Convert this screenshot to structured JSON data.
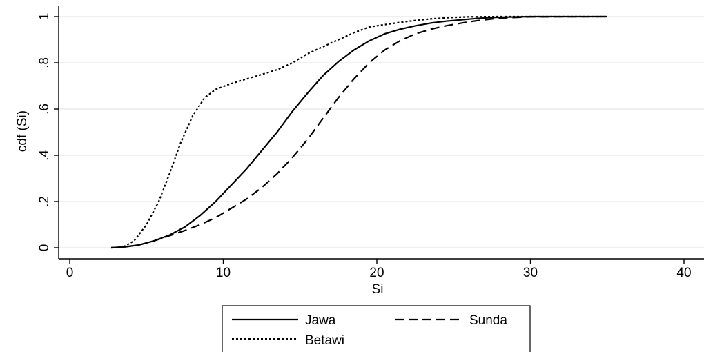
{
  "chart_data": {
    "type": "line",
    "title": "",
    "xlabel": "Si",
    "ylabel": "cdf (Si)",
    "xlim": [
      0,
      40
    ],
    "ylim": [
      0,
      1
    ],
    "grid": true,
    "legend_position": "bottom",
    "x_ticks": [
      {
        "value": 0,
        "label": "0"
      },
      {
        "value": 10,
        "label": "10"
      },
      {
        "value": 20,
        "label": "20"
      },
      {
        "value": 30,
        "label": "30"
      },
      {
        "value": 40,
        "label": "40"
      }
    ],
    "y_ticks": [
      {
        "value": 0,
        "label": "0"
      },
      {
        "value": 0.2,
        "label": ".2"
      },
      {
        "value": 0.4,
        "label": ".4"
      },
      {
        "value": 0.6,
        "label": ".6"
      },
      {
        "value": 0.8,
        "label": ".8"
      },
      {
        "value": 1,
        "label": "1"
      }
    ],
    "series": [
      {
        "name": "Jawa",
        "style": "solid",
        "color": "#000000",
        "points": [
          [
            2.7,
            0
          ],
          [
            3.5,
            0.003
          ],
          [
            4.5,
            0.012
          ],
          [
            5.5,
            0.03
          ],
          [
            6.5,
            0.055
          ],
          [
            7.5,
            0.09
          ],
          [
            8.5,
            0.14
          ],
          [
            9.5,
            0.2
          ],
          [
            10.5,
            0.27
          ],
          [
            11.5,
            0.34
          ],
          [
            12.5,
            0.42
          ],
          [
            13.5,
            0.5
          ],
          [
            14.5,
            0.59
          ],
          [
            15.5,
            0.67
          ],
          [
            16.5,
            0.745
          ],
          [
            17.5,
            0.805
          ],
          [
            18.5,
            0.855
          ],
          [
            19.5,
            0.895
          ],
          [
            20.5,
            0.925
          ],
          [
            21.5,
            0.945
          ],
          [
            22.5,
            0.96
          ],
          [
            23.5,
            0.972
          ],
          [
            24.5,
            0.98
          ],
          [
            25.5,
            0.986
          ],
          [
            26.5,
            0.992
          ],
          [
            27.5,
            0.996
          ],
          [
            28.5,
            0.998
          ],
          [
            30,
            1
          ],
          [
            35,
            1
          ]
        ]
      },
      {
        "name": "Sunda",
        "style": "dashed",
        "color": "#000000",
        "points": [
          [
            2.7,
            0
          ],
          [
            3.5,
            0.003
          ],
          [
            4.5,
            0.012
          ],
          [
            5.5,
            0.03
          ],
          [
            6.5,
            0.052
          ],
          [
            7.5,
            0.075
          ],
          [
            8.5,
            0.1
          ],
          [
            9.5,
            0.13
          ],
          [
            10.5,
            0.17
          ],
          [
            11.5,
            0.21
          ],
          [
            12.5,
            0.26
          ],
          [
            13.5,
            0.32
          ],
          [
            14.5,
            0.39
          ],
          [
            15.5,
            0.47
          ],
          [
            16.5,
            0.56
          ],
          [
            17.5,
            0.65
          ],
          [
            18.5,
            0.73
          ],
          [
            19.5,
            0.8
          ],
          [
            20.5,
            0.855
          ],
          [
            21.5,
            0.895
          ],
          [
            22.5,
            0.925
          ],
          [
            23.5,
            0.945
          ],
          [
            24.5,
            0.96
          ],
          [
            25.5,
            0.972
          ],
          [
            26.5,
            0.982
          ],
          [
            27.5,
            0.99
          ],
          [
            28.5,
            0.995
          ],
          [
            30,
            0.999
          ],
          [
            35,
            1
          ]
        ]
      },
      {
        "name": "Betawi",
        "style": "dotted",
        "color": "#000000",
        "points": [
          [
            2.7,
            0
          ],
          [
            3.5,
            0.004
          ],
          [
            4.2,
            0.03
          ],
          [
            5,
            0.1
          ],
          [
            5.8,
            0.2
          ],
          [
            6.5,
            0.32
          ],
          [
            7.2,
            0.45
          ],
          [
            8,
            0.57
          ],
          [
            8.8,
            0.65
          ],
          [
            9.5,
            0.685
          ],
          [
            10.5,
            0.71
          ],
          [
            11.5,
            0.73
          ],
          [
            12.5,
            0.75
          ],
          [
            13.5,
            0.77
          ],
          [
            14.5,
            0.8
          ],
          [
            15.5,
            0.84
          ],
          [
            16.5,
            0.87
          ],
          [
            17.5,
            0.9
          ],
          [
            18.5,
            0.93
          ],
          [
            19.5,
            0.955
          ],
          [
            20.5,
            0.965
          ],
          [
            21.5,
            0.975
          ],
          [
            22.5,
            0.983
          ],
          [
            23.5,
            0.99
          ],
          [
            24.5,
            0.995
          ],
          [
            26,
            0.999
          ],
          [
            28,
            1
          ],
          [
            35,
            1
          ]
        ]
      }
    ]
  }
}
